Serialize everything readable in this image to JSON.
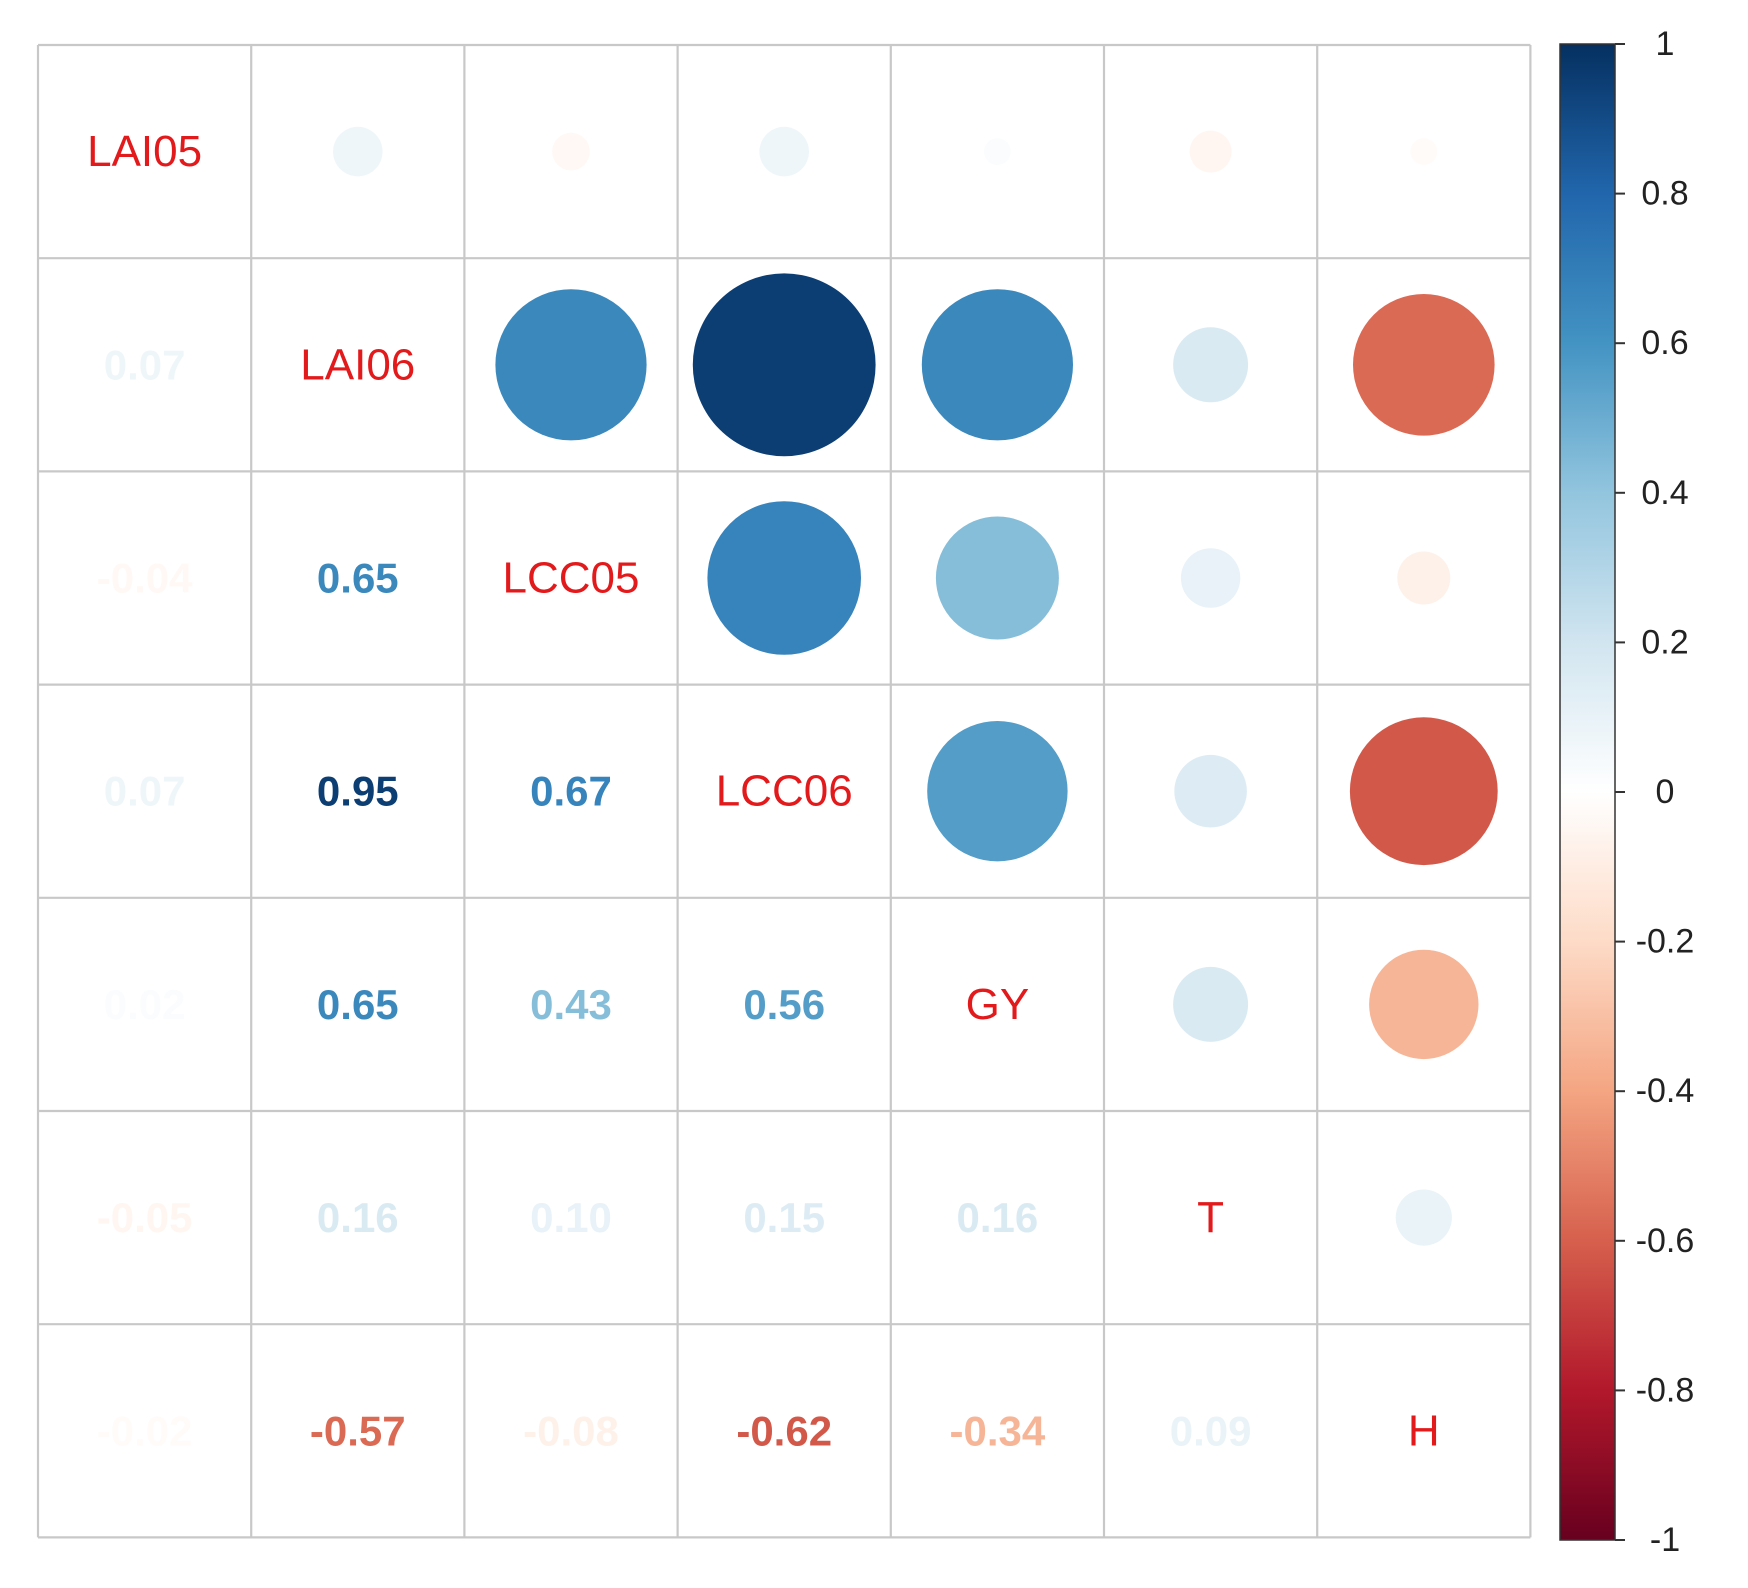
{
  "chart_data": {
    "type": "heatmap",
    "subtype": "correlation-matrix (circle upper, number lower)",
    "variables": [
      "LAI05",
      "LAI06",
      "LCC05",
      "LCC06",
      "GY",
      "T",
      "H"
    ],
    "matrix": [
      [
        1,
        0.07,
        -0.04,
        0.07,
        0.02,
        -0.05,
        -0.02
      ],
      [
        0.07,
        1,
        0.65,
        0.95,
        0.65,
        0.16,
        -0.57
      ],
      [
        -0.04,
        0.65,
        1,
        0.67,
        0.43,
        0.1,
        -0.08
      ],
      [
        0.07,
        0.95,
        0.67,
        1,
        0.56,
        0.15,
        -0.62
      ],
      [
        0.02,
        0.65,
        0.43,
        0.56,
        1,
        0.16,
        -0.34
      ],
      [
        -0.05,
        0.16,
        0.1,
        0.15,
        0.16,
        1,
        0.09
      ],
      [
        -0.02,
        -0.57,
        -0.08,
        -0.62,
        -0.34,
        0.09,
        1
      ]
    ],
    "lower_labels": [
      [],
      [
        "0.07"
      ],
      [
        "-0.04",
        "0.65"
      ],
      [
        "0.07",
        "0.95",
        "0.67"
      ],
      [
        "0.02",
        "0.65",
        "0.43",
        "0.56"
      ],
      [
        "-0.05",
        "0.16",
        "0.10",
        "0.15",
        "0.16"
      ],
      [
        "-0.02",
        "-0.57",
        "-0.08",
        "-0.62",
        "-0.34",
        "0.09"
      ]
    ],
    "colorbar": {
      "range": [
        -1,
        1
      ],
      "ticks": [
        1,
        0.8,
        0.6,
        0.4,
        0.2,
        0,
        -0.2,
        -0.4,
        -0.6,
        -0.8,
        -1
      ],
      "tick_labels": [
        "1",
        "0.8",
        "0.6",
        "0.4",
        "0.2",
        "0",
        "-0.2",
        "-0.4",
        "-0.6",
        "-0.8",
        "-1"
      ],
      "palette": [
        "#67001F",
        "#B2182B",
        "#D6604D",
        "#F4A582",
        "#FDDBC7",
        "#FFFFFF",
        "#D1E5F0",
        "#92C5DE",
        "#4393C3",
        "#2166AC",
        "#053061"
      ]
    },
    "diagonal_label_color": "#E31A1C",
    "grid_color": "#C8C8C8"
  }
}
